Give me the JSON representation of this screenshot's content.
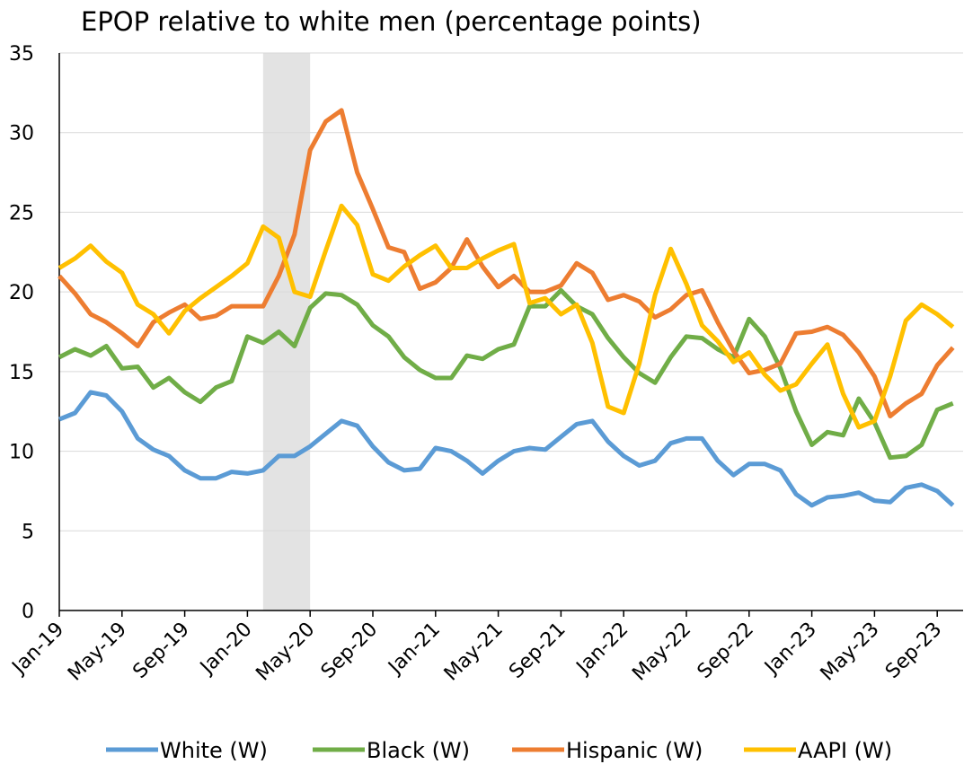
{
  "chart_data": {
    "type": "line",
    "title": "EPOP relative to white men (percentage points)",
    "categories": [
      "Jan-19",
      null,
      null,
      null,
      "May-19",
      null,
      null,
      null,
      "Sep-19",
      null,
      null,
      null,
      "Jan-20",
      null,
      null,
      null,
      "May-20",
      null,
      null,
      null,
      "Sep-20",
      null,
      null,
      null,
      "Jan-21",
      null,
      null,
      null,
      "May-21",
      null,
      null,
      null,
      "Sep-21",
      null,
      null,
      null,
      "Jan-22",
      null,
      null,
      null,
      "May-22",
      null,
      null,
      null,
      "Sep-22",
      null,
      null,
      null,
      "Jan-23",
      null,
      null,
      null,
      "May-23",
      null,
      null,
      null,
      "Sep-23",
      null
    ],
    "shade_x": [
      13,
      16
    ],
    "ylim": [
      0,
      35
    ],
    "yticks": [
      0,
      5,
      10,
      15,
      20,
      25,
      30,
      35
    ],
    "grid": true,
    "legend": "bottom",
    "series": [
      {
        "name": "White (W)",
        "color": "#5b9bd5",
        "values": [
          12.0,
          12.4,
          13.7,
          13.5,
          12.5,
          10.8,
          10.1,
          9.7,
          8.8,
          8.3,
          8.3,
          8.7,
          8.6,
          8.8,
          9.7,
          9.7,
          10.3,
          11.1,
          11.9,
          11.6,
          10.3,
          9.3,
          8.8,
          8.9,
          10.2,
          10.0,
          9.4,
          8.6,
          9.4,
          10.0,
          10.2,
          10.1,
          10.9,
          11.7,
          11.9,
          10.6,
          9.7,
          9.1,
          9.4,
          10.5,
          10.8,
          10.8,
          9.4,
          8.5,
          9.2,
          9.2,
          8.8,
          7.3,
          6.6,
          7.1,
          7.2,
          7.4,
          6.9,
          6.8,
          7.7,
          7.9,
          7.5,
          6.6
        ]
      },
      {
        "name": "Black (W)",
        "color": "#70ad47",
        "values": [
          15.9,
          16.4,
          16.0,
          16.6,
          15.2,
          15.3,
          14.0,
          14.6,
          13.7,
          13.1,
          14.0,
          14.4,
          17.2,
          16.8,
          17.5,
          16.6,
          19.0,
          19.9,
          19.8,
          19.2,
          17.9,
          17.2,
          15.9,
          15.1,
          14.6,
          14.6,
          16.0,
          15.8,
          16.4,
          16.7,
          19.1,
          19.1,
          20.1,
          19.1,
          18.6,
          17.1,
          15.9,
          14.9,
          14.3,
          15.9,
          17.2,
          17.1,
          16.4,
          15.9,
          18.3,
          17.2,
          15.2,
          12.5,
          10.4,
          11.2,
          11.0,
          13.3,
          11.8,
          9.6,
          9.7,
          10.4,
          12.6,
          13.0
        ]
      },
      {
        "name": "Hispanic (W)",
        "color": "#ed7d31",
        "values": [
          21.0,
          19.9,
          18.6,
          18.1,
          17.4,
          16.6,
          18.1,
          18.7,
          19.2,
          18.3,
          18.5,
          19.1,
          19.1,
          19.1,
          21.0,
          23.6,
          28.9,
          30.7,
          31.4,
          27.5,
          25.2,
          22.8,
          22.5,
          20.2,
          20.6,
          21.5,
          23.3,
          21.6,
          20.3,
          21.0,
          20.0,
          20.0,
          20.4,
          21.8,
          21.2,
          19.5,
          19.8,
          19.4,
          18.4,
          18.9,
          19.8,
          20.1,
          18.1,
          16.3,
          14.9,
          15.1,
          15.5,
          17.4,
          17.5,
          17.8,
          17.3,
          16.2,
          14.7,
          12.2,
          13.0,
          13.6,
          15.4,
          16.5
        ]
      },
      {
        "name": "AAPI (W)",
        "color": "#ffc000",
        "values": [
          21.5,
          22.1,
          22.9,
          21.9,
          21.2,
          19.2,
          18.6,
          17.4,
          18.8,
          19.6,
          20.3,
          21.0,
          21.8,
          24.1,
          23.4,
          20.0,
          19.7,
          22.6,
          25.4,
          24.2,
          21.1,
          20.7,
          21.6,
          22.3,
          22.9,
          21.5,
          21.5,
          22.1,
          22.6,
          23.0,
          19.3,
          19.6,
          18.6,
          19.2,
          16.8,
          12.8,
          12.4,
          15.5,
          19.8,
          22.7,
          20.5,
          17.9,
          16.9,
          15.6,
          16.2,
          14.8,
          13.8,
          14.2,
          15.5,
          16.7,
          13.6,
          11.5,
          11.9,
          14.7,
          18.2,
          19.2,
          18.6,
          17.8
        ]
      }
    ]
  }
}
